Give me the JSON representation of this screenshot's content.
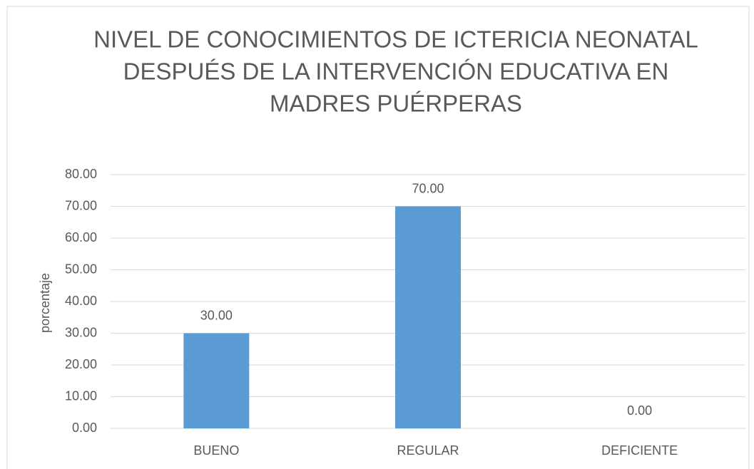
{
  "chart_data": {
    "type": "bar",
    "title": [
      "NIVEL DE CONOCIMIENTOS DE ICTERICIA NEONATAL",
      "DESPUÉS DE LA INTERVENCIÓN EDUCATIVA EN",
      "MADRES PUÉRPERAS"
    ],
    "ylabel": "porcentaje",
    "categories": [
      "BUENO",
      "REGULAR",
      "DEFICIENTE"
    ],
    "values": [
      30,
      70,
      0
    ],
    "value_labels": [
      "30.00",
      "70.00",
      "0.00"
    ],
    "color": "#5b9bd5",
    "ylim": [
      0,
      80
    ],
    "yticks": [
      {
        "value": 0,
        "label": "0.00"
      },
      {
        "value": 10,
        "label": "10.00"
      },
      {
        "value": 20,
        "label": "20.00"
      },
      {
        "value": 30,
        "label": "30.00"
      },
      {
        "value": 40,
        "label": "40.00"
      },
      {
        "value": 50,
        "label": "50.00"
      },
      {
        "value": 60,
        "label": "60.00"
      },
      {
        "value": 70,
        "label": "70.00"
      },
      {
        "value": 80,
        "label": "80.00"
      }
    ],
    "grid": true
  }
}
